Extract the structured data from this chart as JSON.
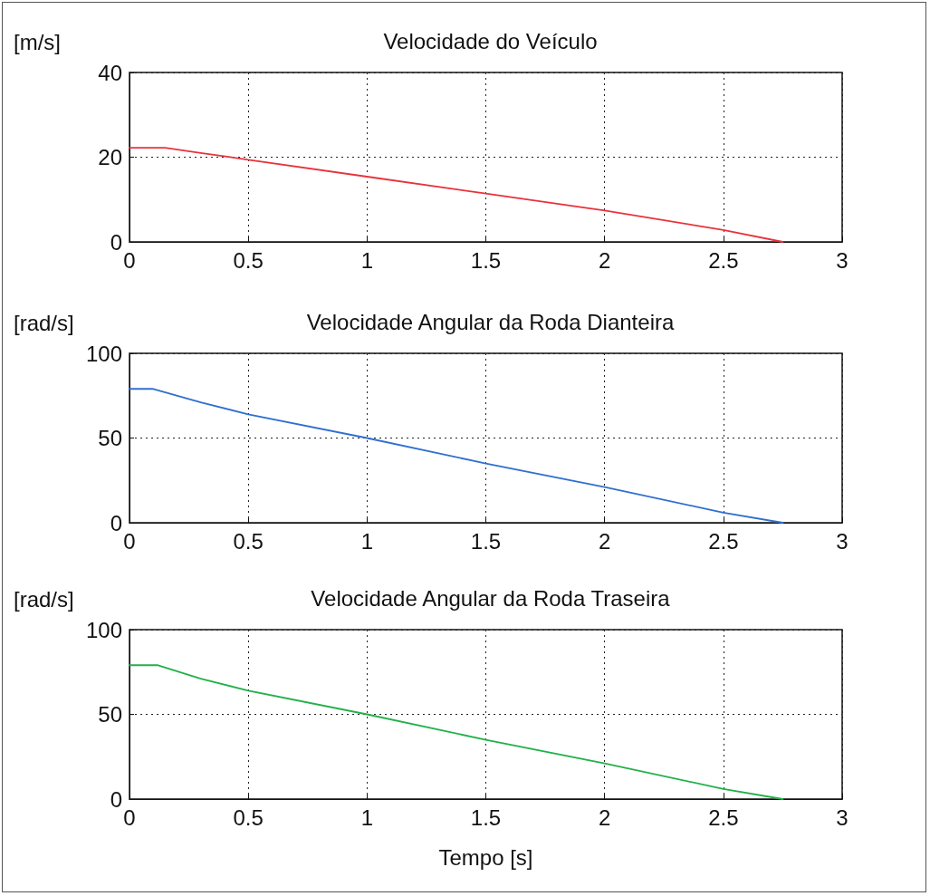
{
  "chart_data": [
    {
      "type": "line",
      "title": "Velocidade do Veículo",
      "ylabel": "[m/s]",
      "series": [
        {
          "color": "#e8323c",
          "x": [
            0,
            0.15,
            0.3,
            0.5,
            1.0,
            1.5,
            2.0,
            2.5,
            2.75
          ],
          "values": [
            22.2,
            22.2,
            21.0,
            19.4,
            15.4,
            11.4,
            7.4,
            2.8,
            0
          ]
        }
      ],
      "xlim": [
        0,
        3
      ],
      "xticks": [
        0,
        0.5,
        1,
        1.5,
        2,
        2.5,
        3
      ],
      "ylim": [
        0,
        40
      ],
      "yticks": [
        0,
        20,
        40
      ],
      "grid": true,
      "marker": "none",
      "line_style": "solid"
    },
    {
      "type": "line",
      "title": "Velocidade Angular da Roda Dianteira",
      "ylabel": "[rad/s]",
      "series": [
        {
          "color": "#2f6fcf",
          "x": [
            0,
            0.1,
            0.3,
            0.5,
            1.0,
            1.5,
            2.0,
            2.5,
            2.75
          ],
          "values": [
            79,
            79,
            71,
            64,
            50,
            35,
            21,
            6,
            0
          ]
        }
      ],
      "xlim": [
        0,
        3
      ],
      "xticks": [
        0,
        0.5,
        1,
        1.5,
        2,
        2.5,
        3
      ],
      "ylim": [
        0,
        100
      ],
      "yticks": [
        0,
        50,
        100
      ],
      "grid": true,
      "marker": "none",
      "line_style": "solid"
    },
    {
      "type": "line",
      "title": "Velocidade Angular da Roda Traseira",
      "ylabel": "[rad/s]",
      "xlabel": "Tempo [s]",
      "series": [
        {
          "color": "#22b04a",
          "x": [
            0,
            0.12,
            0.3,
            0.5,
            1.0,
            1.5,
            2.0,
            2.5,
            2.75
          ],
          "values": [
            79,
            79,
            71,
            64,
            50,
            35,
            21,
            6,
            0
          ]
        }
      ],
      "xlim": [
        0,
        3
      ],
      "xticks": [
        0,
        0.5,
        1,
        1.5,
        2,
        2.5,
        3
      ],
      "ylim": [
        0,
        100
      ],
      "yticks": [
        0,
        50,
        100
      ],
      "grid": true,
      "marker": "none",
      "line_style": "solid"
    }
  ]
}
